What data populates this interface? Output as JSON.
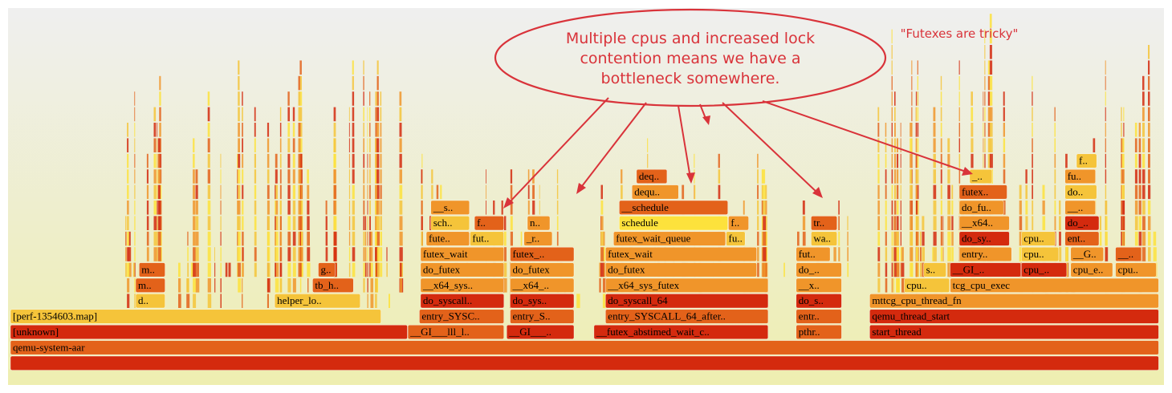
{
  "chart_data": {
    "type": "flamegraph",
    "frames": [
      {
        "label": "",
        "depth": 0,
        "start": 0.0,
        "end": 1.0,
        "color": "#d42a0e"
      },
      {
        "label": "qemu-system-aar",
        "depth": 1,
        "start": 0.0,
        "end": 1.0,
        "color": "#e3621a"
      },
      {
        "label": "[unknown]",
        "depth": 2,
        "start": 0.0,
        "end": 0.346,
        "color": "#d42a0e"
      },
      {
        "label": "__GI___lll_l..",
        "depth": 2,
        "start": 0.346,
        "end": 0.43,
        "color": "#e3621a"
      },
      {
        "label": "__GI___..",
        "depth": 2,
        "start": 0.432,
        "end": 0.491,
        "color": "#d42a0e"
      },
      {
        "label": "__futex_abstimed_wait_c..",
        "depth": 2,
        "start": 0.508,
        "end": 0.66,
        "color": "#d42a0e"
      },
      {
        "label": "pthr..",
        "depth": 2,
        "start": 0.684,
        "end": 0.724,
        "color": "#e3621a"
      },
      {
        "label": "start_thread",
        "depth": 2,
        "start": 0.748,
        "end": 1.0,
        "color": "#d42a0e"
      },
      {
        "label": "[perf-1354603.map]",
        "depth": 3,
        "start": 0.0,
        "end": 0.323,
        "color": "#f5c43a"
      },
      {
        "label": "entry_SYSC..",
        "depth": 3,
        "start": 0.356,
        "end": 0.43,
        "color": "#e3621a"
      },
      {
        "label": "entry_S..",
        "depth": 3,
        "start": 0.435,
        "end": 0.491,
        "color": "#e3621a"
      },
      {
        "label": "entry_SYSCALL_64_after..",
        "depth": 3,
        "start": 0.518,
        "end": 0.66,
        "color": "#e3621a"
      },
      {
        "label": "entr..",
        "depth": 3,
        "start": 0.684,
        "end": 0.724,
        "color": "#e3621a"
      },
      {
        "label": "qemu_thread_start",
        "depth": 3,
        "start": 0.748,
        "end": 1.0,
        "color": "#d42a0e"
      },
      {
        "label": "d..",
        "depth": 4,
        "start": 0.109,
        "end": 0.135,
        "color": "#f5c43a"
      },
      {
        "label": "helper_lo..",
        "depth": 4,
        "start": 0.23,
        "end": 0.305,
        "color": "#f5c43a"
      },
      {
        "label": "do_syscall..",
        "depth": 4,
        "start": 0.357,
        "end": 0.43,
        "color": "#d42a0e"
      },
      {
        "label": "do_sys..",
        "depth": 4,
        "start": 0.435,
        "end": 0.491,
        "color": "#d42a0e"
      },
      {
        "label": "do_syscall_64",
        "depth": 4,
        "start": 0.518,
        "end": 0.66,
        "color": "#d42a0e"
      },
      {
        "label": "do_s..",
        "depth": 4,
        "start": 0.684,
        "end": 0.724,
        "color": "#d42a0e"
      },
      {
        "label": "mttcg_cpu_thread_fn",
        "depth": 4,
        "start": 0.748,
        "end": 1.0,
        "color": "#f0952a"
      },
      {
        "label": "m..",
        "depth": 5,
        "start": 0.109,
        "end": 0.135,
        "color": "#e3621a"
      },
      {
        "label": "tb_h..",
        "depth": 5,
        "start": 0.263,
        "end": 0.299,
        "color": "#e3621a"
      },
      {
        "label": "__x64_sys..",
        "depth": 5,
        "start": 0.357,
        "end": 0.43,
        "color": "#f0952a"
      },
      {
        "label": "__x64_..",
        "depth": 5,
        "start": 0.435,
        "end": 0.491,
        "color": "#f0952a"
      },
      {
        "label": "__x64_sys_futex",
        "depth": 5,
        "start": 0.518,
        "end": 0.66,
        "color": "#f0952a"
      },
      {
        "label": "__x..",
        "depth": 5,
        "start": 0.684,
        "end": 0.724,
        "color": "#f0952a"
      },
      {
        "label": "cpu..",
        "depth": 5,
        "start": 0.778,
        "end": 0.818,
        "color": "#f5c43a"
      },
      {
        "label": "tcg_cpu_exec",
        "depth": 5,
        "start": 0.818,
        "end": 1.0,
        "color": "#f0952a"
      },
      {
        "label": "m..",
        "depth": 6,
        "start": 0.112,
        "end": 0.135,
        "color": "#e3621a"
      },
      {
        "label": "g..",
        "depth": 6,
        "start": 0.268,
        "end": 0.283,
        "color": "#e3621a"
      },
      {
        "label": "do_futex",
        "depth": 6,
        "start": 0.357,
        "end": 0.43,
        "color": "#f0952a"
      },
      {
        "label": "do_futex",
        "depth": 6,
        "start": 0.435,
        "end": 0.491,
        "color": "#f0952a"
      },
      {
        "label": "do_futex",
        "depth": 6,
        "start": 0.518,
        "end": 0.65,
        "color": "#f0952a"
      },
      {
        "label": "do_..",
        "depth": 6,
        "start": 0.684,
        "end": 0.724,
        "color": "#f0952a"
      },
      {
        "label": "s..",
        "depth": 6,
        "start": 0.795,
        "end": 0.815,
        "color": "#f5c43a"
      },
      {
        "label": "__GI_..",
        "depth": 6,
        "start": 0.818,
        "end": 0.88,
        "color": "#d42a0e"
      },
      {
        "label": "cpu_..",
        "depth": 6,
        "start": 0.88,
        "end": 0.92,
        "color": "#d42a0e"
      },
      {
        "label": "cpu_e..",
        "depth": 6,
        "start": 0.923,
        "end": 0.96,
        "color": "#f0952a"
      },
      {
        "label": "cpu..",
        "depth": 6,
        "start": 0.962,
        "end": 0.998,
        "color": "#f0952a"
      },
      {
        "label": "futex_wait",
        "depth": 7,
        "start": 0.357,
        "end": 0.43,
        "color": "#f0952a"
      },
      {
        "label": "futex_..",
        "depth": 7,
        "start": 0.435,
        "end": 0.491,
        "color": "#e3621a"
      },
      {
        "label": "futex_wait",
        "depth": 7,
        "start": 0.518,
        "end": 0.65,
        "color": "#f0952a"
      },
      {
        "label": "fut..",
        "depth": 7,
        "start": 0.684,
        "end": 0.714,
        "color": "#f0952a"
      },
      {
        "label": "entry..",
        "depth": 7,
        "start": 0.826,
        "end": 0.872,
        "color": "#f0952a"
      },
      {
        "label": "cpu..",
        "depth": 7,
        "start": 0.88,
        "end": 0.913,
        "color": "#f5c43a"
      },
      {
        "label": "__G..",
        "depth": 7,
        "start": 0.923,
        "end": 0.952,
        "color": "#f0952a"
      },
      {
        "label": "__..",
        "depth": 7,
        "start": 0.962,
        "end": 0.985,
        "color": "#e3621a"
      },
      {
        "label": "fute..",
        "depth": 8,
        "start": 0.362,
        "end": 0.4,
        "color": "#f0952a"
      },
      {
        "label": "fut..",
        "depth": 8,
        "start": 0.4,
        "end": 0.43,
        "color": "#f5c43a"
      },
      {
        "label": "_r..",
        "depth": 8,
        "start": 0.447,
        "end": 0.472,
        "color": "#f0952a"
      },
      {
        "label": "futex_wait_queue",
        "depth": 8,
        "start": 0.525,
        "end": 0.623,
        "color": "#f0952a"
      },
      {
        "label": "fu..",
        "depth": 8,
        "start": 0.623,
        "end": 0.64,
        "color": "#f5c43a"
      },
      {
        "label": "wa..",
        "depth": 8,
        "start": 0.697,
        "end": 0.72,
        "color": "#f5c43a"
      },
      {
        "label": "do_sy..",
        "depth": 8,
        "start": 0.826,
        "end": 0.87,
        "color": "#d42a0e"
      },
      {
        "label": "cpu..",
        "depth": 8,
        "start": 0.88,
        "end": 0.91,
        "color": "#f5c43a"
      },
      {
        "label": "ent..",
        "depth": 8,
        "start": 0.918,
        "end": 0.948,
        "color": "#e3621a"
      },
      {
        "label": "sch..",
        "depth": 9,
        "start": 0.366,
        "end": 0.4,
        "color": "#f5c43a"
      },
      {
        "label": "f..",
        "depth": 9,
        "start": 0.404,
        "end": 0.43,
        "color": "#e3621a"
      },
      {
        "label": "n..",
        "depth": 9,
        "start": 0.45,
        "end": 0.47,
        "color": "#f0952a"
      },
      {
        "label": "schedule",
        "depth": 9,
        "start": 0.53,
        "end": 0.625,
        "color": "#fde23c"
      },
      {
        "label": "f..",
        "depth": 9,
        "start": 0.625,
        "end": 0.643,
        "color": "#f0952a"
      },
      {
        "label": "tr..",
        "depth": 9,
        "start": 0.697,
        "end": 0.72,
        "color": "#e3621a"
      },
      {
        "label": "__x64..",
        "depth": 9,
        "start": 0.826,
        "end": 0.87,
        "color": "#f0952a"
      },
      {
        "label": "do_..",
        "depth": 9,
        "start": 0.918,
        "end": 0.948,
        "color": "#d42a0e"
      },
      {
        "label": "__s..",
        "depth": 10,
        "start": 0.366,
        "end": 0.4,
        "color": "#f0952a"
      },
      {
        "label": "__schedule",
        "depth": 10,
        "start": 0.53,
        "end": 0.625,
        "color": "#e3621a"
      },
      {
        "label": "do_fu..",
        "depth": 10,
        "start": 0.826,
        "end": 0.865,
        "color": "#f0952a"
      },
      {
        "label": "__..",
        "depth": 10,
        "start": 0.918,
        "end": 0.945,
        "color": "#f0952a"
      },
      {
        "label": "dequ..",
        "depth": 11,
        "start": 0.541,
        "end": 0.582,
        "color": "#f0952a"
      },
      {
        "label": "futex..",
        "depth": 11,
        "start": 0.826,
        "end": 0.868,
        "color": "#e3621a"
      },
      {
        "label": "do..",
        "depth": 11,
        "start": 0.918,
        "end": 0.946,
        "color": "#f5c43a"
      },
      {
        "label": "deq..",
        "depth": 12,
        "start": 0.545,
        "end": 0.572,
        "color": "#e3621a"
      },
      {
        "label": "_..",
        "depth": 12,
        "start": 0.835,
        "end": 0.855,
        "color": "#f5c43a"
      },
      {
        "label": "fu..",
        "depth": 12,
        "start": 0.918,
        "end": 0.945,
        "color": "#f0952a"
      },
      {
        "label": "f..",
        "depth": 13,
        "start": 0.928,
        "end": 0.946,
        "color": "#f5c43a"
      }
    ]
  },
  "annotations": {
    "bubble_text": [
      "Multiple cpus and increased lock",
      "contention means we have a",
      "bottleneck somewhere."
    ],
    "side_note": "\"Futexes are tricky\"",
    "color": "#d9333a"
  }
}
